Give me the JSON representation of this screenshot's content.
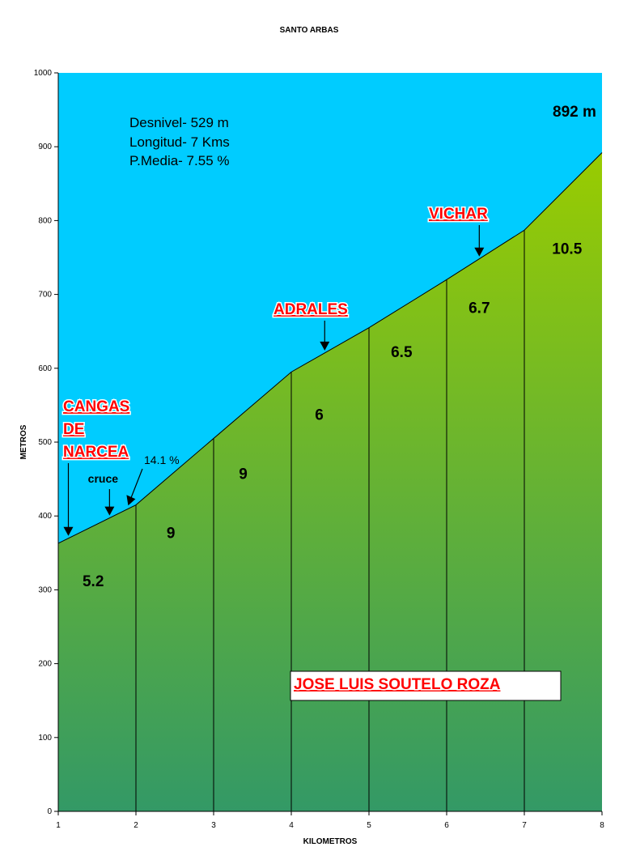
{
  "chart_data": {
    "type": "area",
    "title": "SANTO ARBAS",
    "xlabel": "KILOMETROS",
    "ylabel": "METROS",
    "xlim": [
      1,
      8
    ],
    "ylim": [
      0,
      1000
    ],
    "x_ticks": [
      "1",
      "2",
      "3",
      "4",
      "5",
      "6",
      "7",
      "8"
    ],
    "y_ticks": [
      "0",
      "100",
      "200",
      "300",
      "400",
      "500",
      "600",
      "700",
      "800",
      "900",
      "1000"
    ],
    "x": [
      1,
      2,
      3,
      4,
      5,
      6,
      7,
      8
    ],
    "y": [
      363,
      415,
      505,
      595,
      655,
      720,
      787,
      892
    ],
    "segment_gradients": [
      {
        "label": "5.2",
        "km": 1.45,
        "m": 305
      },
      {
        "label": "9",
        "km": 2.45,
        "m": 370
      },
      {
        "label": "9",
        "km": 3.38,
        "m": 450
      },
      {
        "label": "6",
        "km": 4.36,
        "m": 530
      },
      {
        "label": "6.5",
        "km": 5.42,
        "m": 615
      },
      {
        "label": "6.7",
        "km": 6.42,
        "m": 675
      },
      {
        "label": "10.5",
        "km": 7.55,
        "m": 755
      }
    ],
    "info": [
      "Desnivel- 529 m",
      "Longitud- 7 Kms",
      "P.Media- 7.55 %"
    ],
    "summit_label": "892 m",
    "places": [
      {
        "lines": [
          "CANGAS",
          "DE",
          "NARCEA"
        ],
        "arrow_km": 1.13
      },
      {
        "lines": [
          "ADRALES"
        ],
        "arrow_km": 4.43
      },
      {
        "lines": [
          "VICHAR"
        ],
        "arrow_km": 6.42
      }
    ],
    "notes": [
      {
        "label": "cruce",
        "arrow_km": 1.66
      },
      {
        "label": "14.1 %",
        "arrow_km": 1.9
      }
    ],
    "author": "JOSE LUIS SOUTELO ROZA",
    "colors": {
      "sky": "#00ccff",
      "fill_top": "#99cc00",
      "fill_bottom": "#339966",
      "place": "#ff0000"
    }
  }
}
